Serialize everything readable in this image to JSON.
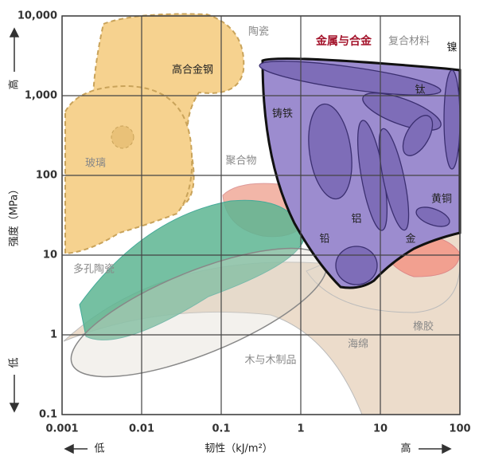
{
  "chart_data": {
    "type": "ashby",
    "x_label": "韧性（kJ/m²）",
    "y_label": "强度（MPa）",
    "x_low": "低",
    "x_high": "高",
    "y_low": "低",
    "y_high": "高",
    "xscale": "log",
    "yscale": "log",
    "grid": true,
    "xlim": [
      0.001,
      100
    ],
    "ylim": [
      0.1,
      10000
    ],
    "xticks": [
      0.001,
      0.01,
      0.1,
      1,
      10,
      100
    ],
    "yticks": [
      0.1,
      1,
      10,
      100,
      {
        "value": 1000,
        "label": "1,000"
      },
      {
        "value": 10000,
        "label": "10,000"
      }
    ],
    "region_labels": [
      "陶瓷",
      "金属与合金",
      "复合材料",
      "镍",
      "高合金钢",
      "钛",
      "铸铁",
      "玻璃",
      "聚合物",
      "黄铜",
      "铝",
      "金",
      "铅",
      "多孔陶瓷",
      "橡胶",
      "木与木制品",
      "海绵"
    ]
  }
}
